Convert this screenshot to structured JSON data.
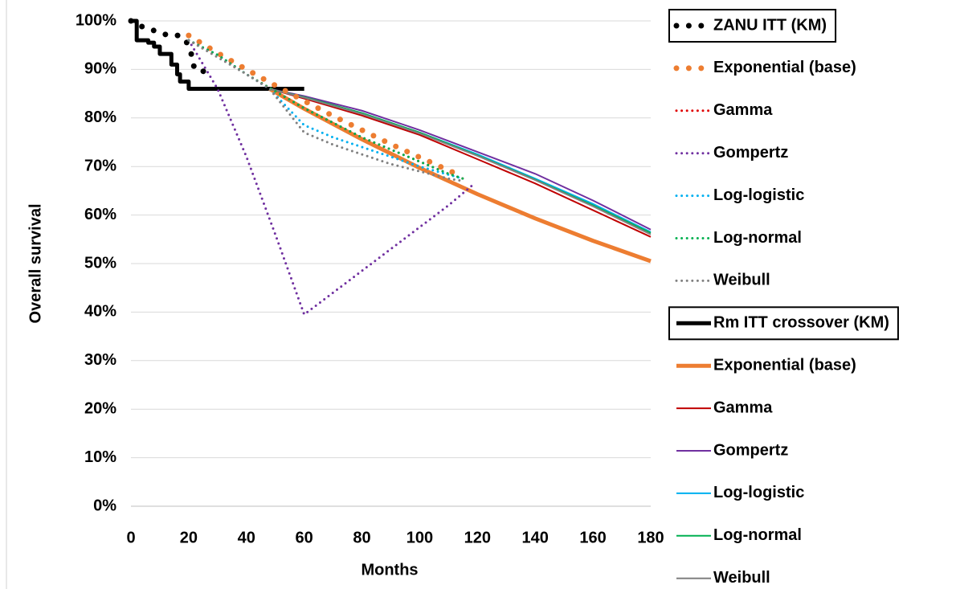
{
  "chart_data": {
    "type": "line",
    "x_label": "Months",
    "y_label": "Overall survival",
    "xlim": [
      0,
      180
    ],
    "ylim": [
      0,
      100
    ],
    "xticks": [
      0,
      20,
      40,
      60,
      80,
      100,
      120,
      140,
      160,
      180
    ],
    "yticks": [
      {
        "value": 0,
        "label": "0%"
      },
      {
        "value": 10,
        "label": "10%"
      },
      {
        "value": 20,
        "label": "20%"
      },
      {
        "value": 30,
        "label": "30%"
      },
      {
        "value": 40,
        "label": "40%"
      },
      {
        "value": 50,
        "label": "50%"
      },
      {
        "value": 60,
        "label": "60%"
      },
      {
        "value": 70,
        "label": "70%"
      },
      {
        "value": 80,
        "label": "80%"
      },
      {
        "value": 90,
        "label": "90%"
      },
      {
        "value": 100,
        "label": "100%"
      }
    ],
    "grid": true,
    "legend": "right",
    "series": [
      {
        "name": "ZANU ITT (KM)",
        "color": "#000000",
        "style": "dotted",
        "width": 7,
        "boxed": true,
        "x": [
          0,
          3,
          8,
          13,
          17,
          19,
          21,
          22,
          26
        ],
        "values": [
          100,
          99,
          98,
          97,
          97,
          96,
          93,
          90,
          89.5
        ]
      },
      {
        "name": "Exponential (base)",
        "color": "#ed7d31",
        "style": "dotted",
        "width": 7,
        "x": [
          20,
          30,
          40,
          50,
          60,
          70,
          80,
          90,
          100,
          110,
          115
        ],
        "values": [
          97,
          93.4,
          90,
          86.7,
          83.5,
          80.4,
          77.5,
          74.6,
          71.9,
          69.2,
          67.9
        ]
      },
      {
        "name": "Gamma",
        "color": "#e00000",
        "style": "dotted",
        "width": 3,
        "x": [
          20,
          30,
          40,
          50,
          60,
          70,
          80,
          90,
          100,
          110,
          115
        ],
        "values": [
          96,
          93,
          89,
          85.5,
          82,
          79,
          76,
          73.5,
          71,
          68.5,
          67.5
        ]
      },
      {
        "name": "Gompertz",
        "color": "#7030a0",
        "style": "dotted",
        "width": 3,
        "x": [
          20,
          30,
          40,
          50,
          60,
          70,
          80,
          90,
          100,
          110,
          118
        ],
        "values": [
          96,
          86,
          72,
          56,
          39.5,
          44,
          48.5,
          53,
          57.5,
          62,
          66
        ]
      },
      {
        "name": "Log-logistic",
        "color": "#00b0f0",
        "style": "dotted",
        "width": 3,
        "x": [
          20,
          30,
          40,
          48,
          60,
          70,
          80,
          90,
          100,
          110,
          115
        ],
        "values": [
          96,
          93,
          89,
          86,
          78.5,
          76,
          74,
          72,
          70,
          68.3,
          67.5
        ]
      },
      {
        "name": "Log-normal",
        "color": "#00b050",
        "style": "dotted",
        "width": 3,
        "x": [
          20,
          30,
          40,
          50,
          60,
          70,
          80,
          90,
          100,
          110,
          115
        ],
        "values": [
          96,
          93,
          89,
          85.5,
          82,
          79,
          76,
          73.5,
          71,
          68.5,
          67.5
        ]
      },
      {
        "name": "Weibull",
        "color": "#808080",
        "style": "dotted",
        "width": 3,
        "x": [
          20,
          30,
          40,
          48,
          60,
          70,
          80,
          90,
          100,
          110,
          115
        ],
        "values": [
          96,
          92.5,
          89,
          86,
          77,
          74.5,
          72.5,
          70.5,
          69,
          67.5,
          67
        ]
      },
      {
        "name": "Rm ITT crossover (KM)",
        "color": "#000000",
        "style": "solid",
        "width": 5,
        "boxed": true,
        "x": [
          0,
          2,
          2,
          6,
          6,
          8,
          8,
          10,
          10,
          14,
          14,
          16,
          16,
          17,
          17,
          20,
          20,
          60
        ],
        "values": [
          100,
          100,
          96,
          96,
          95.5,
          95.5,
          94.7,
          94.7,
          93.2,
          93.2,
          91,
          91,
          89,
          89,
          87.5,
          87.5,
          86,
          86
        ]
      },
      {
        "name": "Exponential (base)",
        "color": "#ed7d31",
        "style": "solid",
        "width": 5,
        "x": [
          48,
          60,
          80,
          100,
          120,
          140,
          160,
          180
        ],
        "values": [
          86,
          81.9,
          75.6,
          69.7,
          64.3,
          59.3,
          54.7,
          50.5
        ]
      },
      {
        "name": "Gamma",
        "color": "#c00000",
        "style": "solid",
        "width": 2,
        "x": [
          48,
          60,
          80,
          100,
          120,
          140,
          160,
          180
        ],
        "values": [
          86,
          84,
          80.5,
          76.5,
          71.5,
          66.5,
          61,
          55.5
        ]
      },
      {
        "name": "Gompertz",
        "color": "#7030a0",
        "style": "solid",
        "width": 2,
        "x": [
          48,
          60,
          80,
          100,
          120,
          140,
          160,
          180
        ],
        "values": [
          86,
          84.5,
          81.5,
          77.5,
          73,
          68.5,
          63,
          57
        ]
      },
      {
        "name": "Log-logistic",
        "color": "#00b0f0",
        "style": "solid",
        "width": 2,
        "x": [
          48,
          60,
          80,
          100,
          120,
          140,
          160,
          180
        ],
        "values": [
          86,
          84.2,
          81,
          77,
          72.5,
          67.5,
          62.3,
          56.5
        ]
      },
      {
        "name": "Log-normal",
        "color": "#00b050",
        "style": "solid",
        "width": 2,
        "x": [
          48,
          60,
          80,
          100,
          120,
          140,
          160,
          180
        ],
        "values": [
          86,
          84.3,
          81,
          77,
          72.3,
          67.3,
          62,
          56.3
        ]
      },
      {
        "name": "Weibull",
        "color": "#808080",
        "style": "solid",
        "width": 2,
        "x": [
          48,
          60,
          80,
          100,
          120,
          140,
          160,
          180
        ],
        "values": [
          86,
          84.2,
          80.8,
          76.8,
          72.2,
          67.2,
          61.8,
          56
        ]
      }
    ]
  }
}
